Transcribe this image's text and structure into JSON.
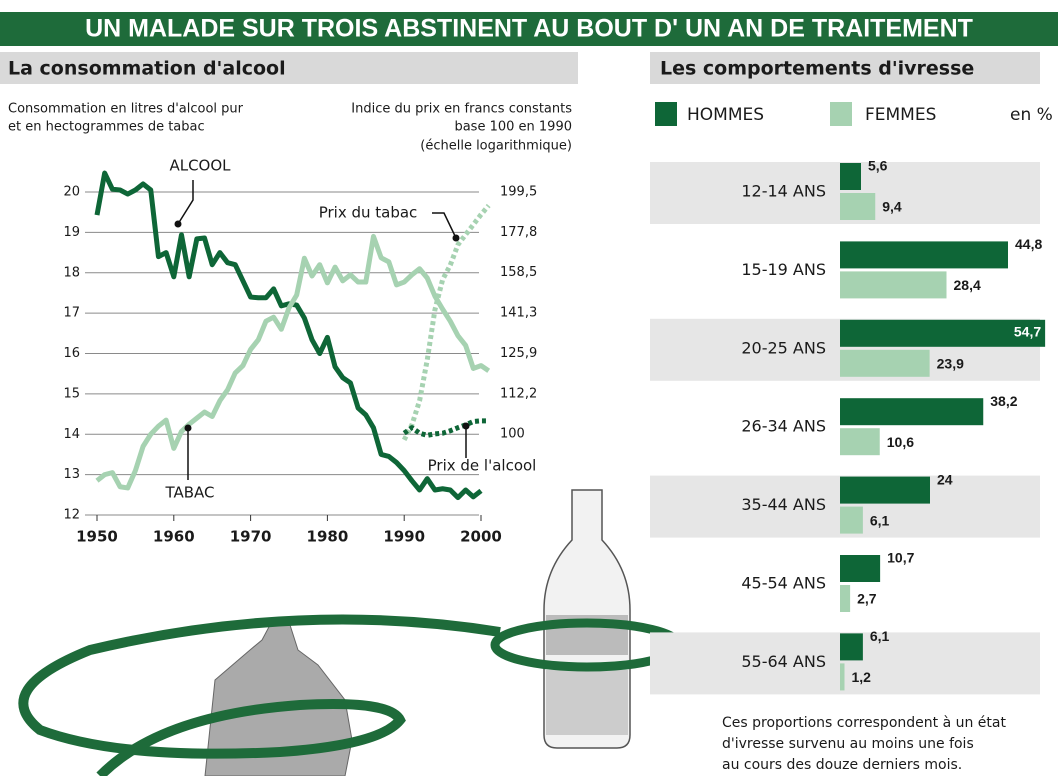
{
  "headline": "UN MALADE SUR TROIS ABSTINENT AU BOUT D' UN AN DE TRAITEMENT",
  "chart_data": [
    {
      "type": "line",
      "title": "La consommation d'alcool",
      "ylabel": [
        "Consommation en litres d'alcool pur",
        "et en hectogrammes de tabac"
      ],
      "y2label": [
        "Indice du prix en francs constants",
        "base 100 en 1990",
        "(échelle logarithmique)"
      ],
      "x": [
        1950,
        1951,
        1952,
        1953,
        1954,
        1955,
        1956,
        1957,
        1958,
        1959,
        1960,
        1961,
        1962,
        1963,
        1964,
        1965,
        1966,
        1967,
        1968,
        1969,
        1970,
        1971,
        1972,
        1973,
        1974,
        1975,
        1976,
        1977,
        1978,
        1979,
        1980,
        1981,
        1982,
        1983,
        1984,
        1985,
        1986,
        1987,
        1988,
        1989,
        1990,
        1991,
        1992,
        1993,
        1994,
        1995,
        1996,
        1997,
        1998,
        1999,
        2000,
        2001
      ],
      "xlim": [
        1950,
        2002
      ],
      "xticks": [
        1950,
        1960,
        1970,
        1980,
        1990,
        2000
      ],
      "ylim": [
        12,
        20.6
      ],
      "yticks": [
        12,
        13,
        14,
        15,
        16,
        17,
        18,
        19,
        20
      ],
      "y2lim": [
        79.43,
        213.8
      ],
      "y2_log": true,
      "y2ticks": [
        100,
        {
          "value": 112.2,
          "label": "112,2"
        },
        {
          "value": 125.9,
          "label": "125,9"
        },
        {
          "value": 141.3,
          "label": "141,3"
        },
        {
          "value": 158.5,
          "label": "158,5"
        },
        {
          "value": 177.8,
          "label": "177,8"
        },
        {
          "value": 199.5,
          "label": "199,5"
        }
      ],
      "grid": true,
      "series": [
        {
          "name": "ALCOOL",
          "color": "#0e6637",
          "dashed": false,
          "values": [
            19.43,
            20.47,
            20.07,
            20.05,
            19.95,
            20.05,
            20.2,
            20.05,
            18.4,
            18.5,
            17.9,
            18.94,
            17.9,
            18.84,
            18.86,
            18.2,
            18.5,
            18.25,
            18.2,
            17.8,
            17.4,
            17.38,
            17.38,
            17.6,
            17.18,
            17.23,
            17.2,
            16.88,
            16.34,
            16.0,
            16.4,
            15.67,
            15.4,
            15.27,
            14.65,
            14.48,
            14.16,
            13.5,
            13.45,
            13.3,
            13.1,
            12.85,
            12.62,
            12.9,
            12.62,
            12.65,
            12.62,
            12.43,
            12.62,
            12.45,
            12.6,
            null
          ]
        },
        {
          "name": "TABAC",
          "color": "#a6d2b1",
          "dashed": false,
          "values": [
            12.85,
            13.0,
            13.05,
            12.7,
            12.67,
            13.1,
            13.7,
            14.0,
            14.2,
            14.35,
            13.65,
            14.07,
            14.25,
            14.4,
            14.55,
            14.44,
            14.83,
            15.1,
            15.52,
            15.7,
            16.1,
            16.34,
            16.8,
            16.9,
            16.6,
            17.13,
            17.45,
            18.36,
            17.92,
            18.2,
            17.75,
            18.14,
            17.8,
            17.95,
            17.77,
            17.77,
            18.9,
            18.37,
            18.27,
            17.7,
            17.77,
            17.95,
            18.1,
            17.87,
            17.42,
            17.1,
            16.8,
            16.44,
            16.2,
            15.63,
            15.7,
            15.57
          ]
        },
        {
          "name": "Prix du tabac",
          "color": "#a6d2b1",
          "dashed": true,
          "axis": "y2",
          "values": [
            null,
            null,
            null,
            null,
            null,
            null,
            null,
            null,
            null,
            null,
            null,
            null,
            null,
            null,
            null,
            null,
            null,
            null,
            null,
            null,
            null,
            null,
            null,
            null,
            null,
            null,
            null,
            null,
            null,
            null,
            null,
            null,
            null,
            null,
            null,
            null,
            null,
            null,
            null,
            null,
            98.4,
            102.7,
            110,
            123.6,
            142.6,
            155.4,
            162,
            171.7,
            176.7,
            181.8,
            187.1,
            192
          ]
        },
        {
          "name": "Prix de l'alcool",
          "color": "#0e6637",
          "dashed": true,
          "axis": "y2",
          "values": [
            null,
            null,
            null,
            null,
            null,
            null,
            null,
            null,
            null,
            null,
            null,
            null,
            null,
            null,
            null,
            null,
            null,
            null,
            null,
            null,
            null,
            null,
            null,
            null,
            null,
            null,
            null,
            null,
            null,
            null,
            null,
            null,
            null,
            null,
            null,
            null,
            null,
            null,
            null,
            null,
            100.3,
            101.9,
            100.3,
            99.7,
            100.1,
            100.3,
            101,
            101.9,
            102.7,
            103.7,
            103.9,
            103.9
          ]
        }
      ]
    },
    {
      "type": "hbar",
      "title": "Les comportements d'ivresse",
      "unit": "en %",
      "categories": [
        "12-14 ANS",
        "15-19 ANS",
        "20-25 ANS",
        "26-34 ANS",
        "35-44 ANS",
        "45-54 ANS",
        "55-64 ANS"
      ],
      "series": [
        {
          "name": "HOMMES",
          "color": "#0e6637",
          "values": [
            5.6,
            44.8,
            54.7,
            38.2,
            24,
            10.7,
            6.1
          ],
          "value_labels": [
            "5,6",
            "44,8",
            "54,7",
            "38,2",
            "24",
            "10,7",
            "6,1"
          ]
        },
        {
          "name": "FEMMES",
          "color": "#a6d2b1",
          "values": [
            9.4,
            28.4,
            23.9,
            10.6,
            6.1,
            2.7,
            1.2
          ],
          "value_labels": [
            "9,4",
            "28,4",
            "23,9",
            "10,6",
            "6,1",
            "2,7",
            "1,2"
          ]
        }
      ],
      "note": [
        "Ces proportions correspondent à un état",
        "d'ivresse survenu au moins une fois",
        "au cours des douze derniers mois."
      ]
    }
  ]
}
